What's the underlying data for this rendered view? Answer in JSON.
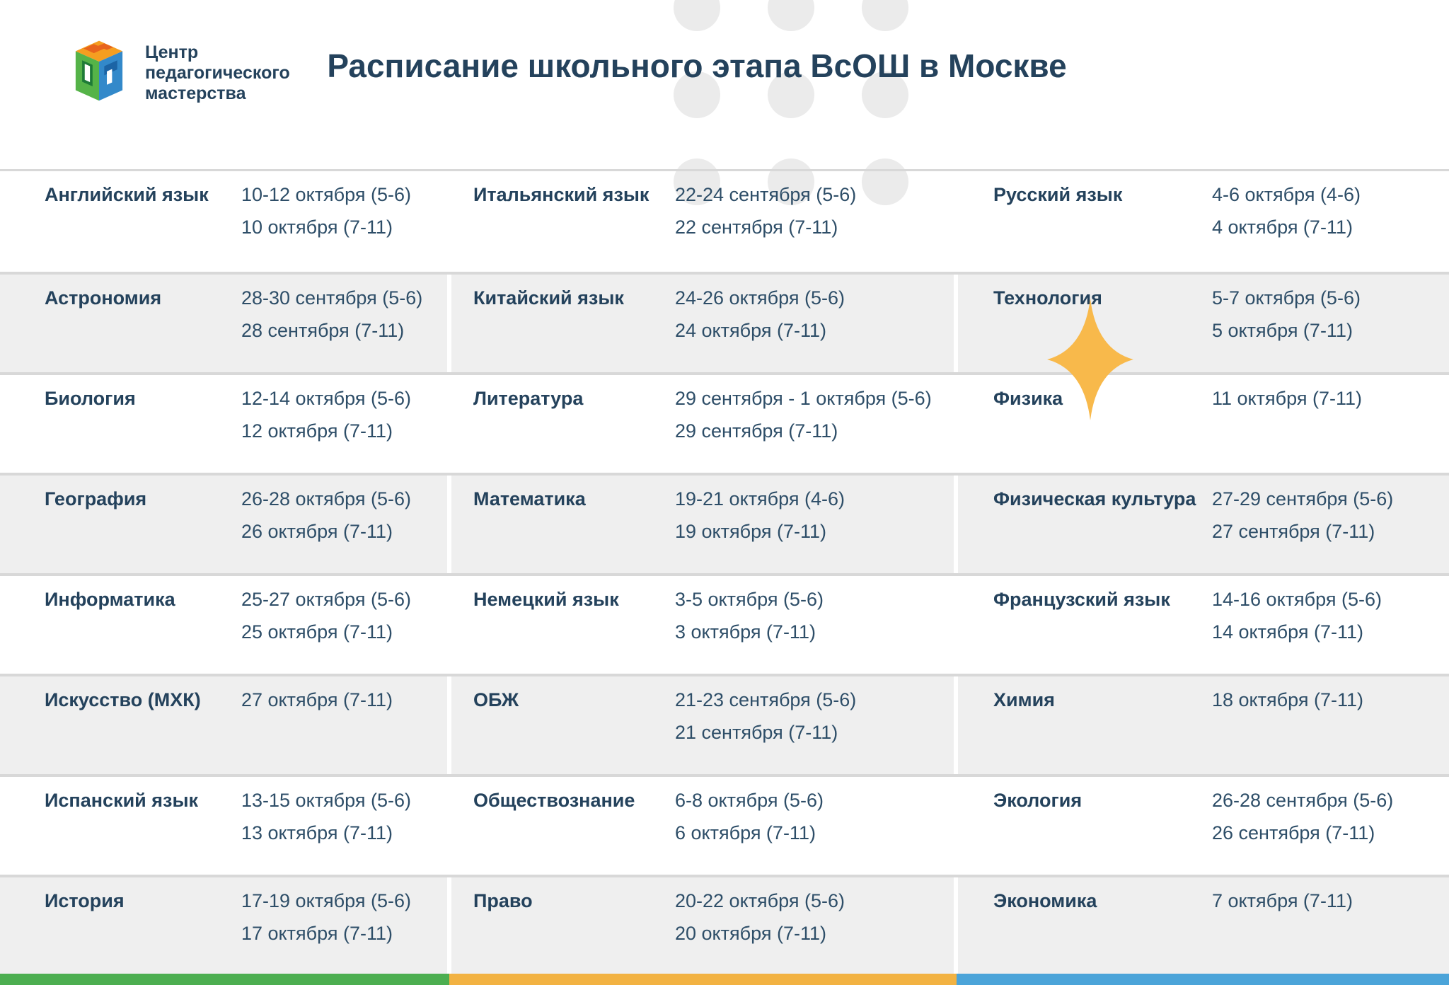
{
  "header": {
    "logo_text_lines": [
      "Центр",
      "педагогического",
      "мастерства"
    ],
    "title": "Расписание школьного этапа ВсОШ в Москве"
  },
  "colors": {
    "text_navy": "#24425C",
    "text_dates": "#2E4E68",
    "row_alt": "#EFEFEF",
    "separator": "#D8D8D8",
    "dot_gray": "#EBEBEB",
    "accent_green": "#4CAE50",
    "accent_orange": "#F2B242",
    "accent_blue": "#4BA4D9",
    "star_orange": "#F8B94B",
    "logo_orange": "#F59E20",
    "logo_orange_dark": "#E8641C",
    "logo_green": "#55B348",
    "logo_green_dark": "#1E7B37",
    "logo_blue": "#3389CA",
    "logo_blue_dark": "#1C64A5"
  },
  "schedule": {
    "columns": [
      {
        "items": [
          {
            "subject": "Английский язык",
            "dates": [
              "10-12 октября (5-6)",
              "10 октября (7-11)"
            ]
          },
          {
            "subject": "Астрономия",
            "dates": [
              "28-30 сентября (5-6)",
              "28 сентября (7-11)"
            ]
          },
          {
            "subject": "Биология",
            "dates": [
              "12-14 октября (5-6)",
              "12 октября (7-11)"
            ]
          },
          {
            "subject": "География",
            "dates": [
              "26-28 октября (5-6)",
              "26 октября (7-11)"
            ]
          },
          {
            "subject": "Информатика",
            "dates": [
              "25-27 октября (5-6)",
              "25 октября (7-11)"
            ]
          },
          {
            "subject": "Искусство (МХК)",
            "dates": [
              "27 октября (7-11)"
            ]
          },
          {
            "subject": "Испанский язык",
            "dates": [
              "13-15 октября (5-6)",
              "13 октября (7-11)"
            ]
          },
          {
            "subject": "История",
            "dates": [
              "17-19 октября (5-6)",
              "17 октября (7-11)"
            ]
          }
        ]
      },
      {
        "items": [
          {
            "subject": "Итальянский язык",
            "dates": [
              "22-24 сентября (5-6)",
              "22 сентября (7-11)"
            ]
          },
          {
            "subject": "Китайский язык",
            "dates": [
              "24-26 октября (5-6)",
              "24 октября (7-11)"
            ]
          },
          {
            "subject": "Литература",
            "dates": [
              "29 сентября - 1 октября (5-6)",
              "29 сентября (7-11)"
            ]
          },
          {
            "subject": "Математика",
            "dates": [
              "19-21 октября (4-6)",
              "19 октября (7-11)"
            ]
          },
          {
            "subject": "Немецкий язык",
            "dates": [
              "3-5 октября (5-6)",
              "3 октября (7-11)"
            ]
          },
          {
            "subject": "ОБЖ",
            "dates": [
              "21-23 сентября (5-6)",
              "21 сентября (7-11)"
            ]
          },
          {
            "subject": "Обществознание",
            "dates": [
              "6-8 октября (5-6)",
              "6 октября (7-11)"
            ]
          },
          {
            "subject": "Право",
            "dates": [
              "20-22 октября (5-6)",
              "20 октября (7-11)"
            ]
          }
        ]
      },
      {
        "items": [
          {
            "subject": "Русский язык",
            "dates": [
              "4-6 октября (4-6)",
              "4 октября (7-11)"
            ]
          },
          {
            "subject": "Технология",
            "dates": [
              "5-7 октября (5-6)",
              "5 октября (7-11)"
            ]
          },
          {
            "subject": "Физика",
            "dates": [
              "11 октября (7-11)"
            ]
          },
          {
            "subject": "Физическая культура",
            "dates": [
              "27-29 сентября (5-6)",
              "27 сентября (7-11)"
            ]
          },
          {
            "subject": "Французский язык",
            "dates": [
              "14-16 октября (5-6)",
              "14 октября (7-11)"
            ]
          },
          {
            "subject": "Химия",
            "dates": [
              "18 октября (7-11)"
            ]
          },
          {
            "subject": "Экология",
            "dates": [
              "26-28 сентября (5-6)",
              "26 сентября (7-11)"
            ]
          },
          {
            "subject": "Экономика",
            "dates": [
              "7 октября (7-11)"
            ]
          }
        ]
      }
    ]
  }
}
